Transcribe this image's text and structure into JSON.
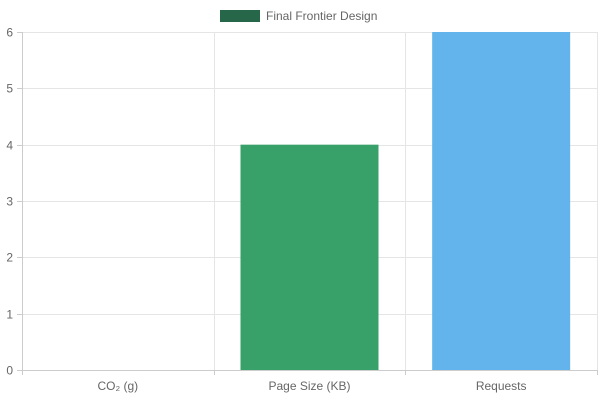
{
  "chart_data": {
    "type": "bar",
    "categories": [
      "CO₂ (g)",
      "Page Size (KB)",
      "Requests"
    ],
    "series": [
      {
        "name": "Final Frontier Design",
        "values": [
          0,
          4,
          6
        ],
        "colors": [
          "#38a169",
          "#38a169",
          "#63b3ed"
        ]
      }
    ],
    "legend": {
      "position": "top",
      "swatch_color": "#276749"
    },
    "ylim": [
      0,
      6
    ],
    "y_ticks": [
      0,
      1,
      2,
      3,
      4,
      5,
      6
    ],
    "grid": true,
    "title": "",
    "xlabel": "",
    "ylabel": ""
  }
}
